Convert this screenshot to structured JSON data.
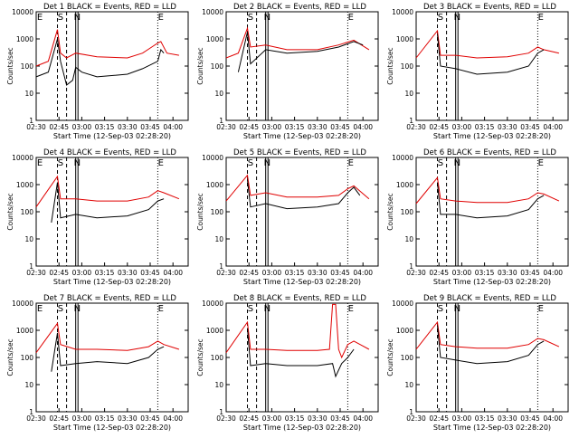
{
  "chart_data": {
    "type": "line",
    "yscale": "log",
    "ylim": [
      1,
      10000
    ],
    "xlim_minutes_after_0200": [
      30,
      130
    ],
    "x_tick_labels": [
      "02:30",
      "02:45",
      "03:00",
      "03:15",
      "03:30",
      "03:45",
      "04:00"
    ],
    "y_tick_labels": [
      "1",
      "10",
      "100",
      "1000",
      "10000"
    ],
    "xlabel": "Start Time (12-Sep-03 02:28:20)",
    "ylabel": "Counts/sec",
    "series_colors": {
      "events": "#000000",
      "lld": "#e00000"
    },
    "marker_labels": [
      "S",
      "N",
      "E"
    ],
    "panels": [
      {
        "title": "Det 1  BLACK = Events, RED = LLD",
        "title_parts": [
          "Det 1",
          "BLACK = Events, RED = LLD"
        ],
        "marks": [
          "E",
          "S",
          "N",
          "E"
        ],
        "black": [
          [
            30,
            40
          ],
          [
            38,
            60
          ],
          [
            44,
            1000
          ],
          [
            46,
            150
          ],
          [
            50,
            20
          ],
          [
            54,
            30
          ],
          [
            56,
            90
          ],
          [
            60,
            60
          ],
          [
            70,
            40
          ],
          [
            90,
            50
          ],
          [
            100,
            80
          ],
          [
            110,
            150
          ],
          [
            112,
            400
          ],
          [
            114,
            300
          ]
        ],
        "red": [
          [
            30,
            100
          ],
          [
            38,
            150
          ],
          [
            44,
            2200
          ],
          [
            46,
            300
          ],
          [
            50,
            200
          ],
          [
            56,
            300
          ],
          [
            70,
            220
          ],
          [
            90,
            200
          ],
          [
            100,
            300
          ],
          [
            106,
            500
          ],
          [
            110,
            700
          ],
          [
            112,
            800
          ],
          [
            116,
            300
          ],
          [
            124,
            250
          ]
        ]
      },
      {
        "title": "Det 2  BLACK = Events, RED = LLD",
        "title_parts": [
          "Det 2",
          "BLACK = Events, RED = LLD"
        ],
        "marks": [
          "S",
          "N",
          "E"
        ],
        "black": [
          [
            38,
            60
          ],
          [
            44,
            1800
          ],
          [
            46,
            120
          ],
          [
            56,
            400
          ],
          [
            70,
            300
          ],
          [
            90,
            350
          ],
          [
            104,
            500
          ],
          [
            114,
            800
          ],
          [
            120,
            600
          ]
        ],
        "red": [
          [
            30,
            200
          ],
          [
            38,
            300
          ],
          [
            44,
            2500
          ],
          [
            46,
            500
          ],
          [
            56,
            600
          ],
          [
            70,
            400
          ],
          [
            90,
            400
          ],
          [
            104,
            600
          ],
          [
            114,
            900
          ],
          [
            124,
            400
          ]
        ]
      },
      {
        "title": "Det 3  BLACK = Events, RED = LLD",
        "title_parts": [
          "Det 3",
          "BLACK = Events, RED = LLD"
        ],
        "marks": [
          "S",
          "N",
          "E"
        ],
        "black": [
          [
            44,
            1500
          ],
          [
            46,
            100
          ],
          [
            56,
            80
          ],
          [
            70,
            50
          ],
          [
            90,
            60
          ],
          [
            104,
            100
          ],
          [
            110,
            300
          ],
          [
            114,
            400
          ]
        ],
        "red": [
          [
            30,
            200
          ],
          [
            44,
            2000
          ],
          [
            46,
            250
          ],
          [
            56,
            250
          ],
          [
            70,
            200
          ],
          [
            90,
            220
          ],
          [
            104,
            300
          ],
          [
            110,
            500
          ],
          [
            114,
            400
          ],
          [
            124,
            300
          ]
        ]
      },
      {
        "title": "Det 4  BLACK = Events, RED = LLD",
        "title_parts": [
          "Det 4",
          "BLACK = Events, RED = LLD"
        ],
        "marks": [
          "E",
          "S",
          "N",
          "E"
        ],
        "black": [
          [
            40,
            40
          ],
          [
            44,
            1200
          ],
          [
            46,
            60
          ],
          [
            56,
            80
          ],
          [
            70,
            60
          ],
          [
            90,
            70
          ],
          [
            104,
            120
          ],
          [
            110,
            250
          ],
          [
            114,
            300
          ]
        ],
        "red": [
          [
            30,
            150
          ],
          [
            44,
            2000
          ],
          [
            46,
            300
          ],
          [
            56,
            300
          ],
          [
            70,
            250
          ],
          [
            90,
            250
          ],
          [
            104,
            350
          ],
          [
            110,
            600
          ],
          [
            114,
            500
          ],
          [
            124,
            300
          ]
        ]
      },
      {
        "title": "Det 5  BLACK = Events, RED = LLD",
        "title_parts": [
          "Det 5",
          "BLACK = Events, RED = LLD"
        ],
        "marks": [
          "S",
          "N",
          "E"
        ],
        "black": [
          [
            44,
            1500
          ],
          [
            46,
            150
          ],
          [
            56,
            200
          ],
          [
            70,
            130
          ],
          [
            90,
            150
          ],
          [
            104,
            200
          ],
          [
            110,
            500
          ],
          [
            114,
            800
          ],
          [
            118,
            400
          ]
        ],
        "red": [
          [
            30,
            250
          ],
          [
            44,
            2200
          ],
          [
            46,
            400
          ],
          [
            56,
            500
          ],
          [
            70,
            350
          ],
          [
            90,
            350
          ],
          [
            104,
            400
          ],
          [
            110,
            700
          ],
          [
            114,
            900
          ],
          [
            124,
            300
          ]
        ]
      },
      {
        "title": "Det 6  BLACK = Events, RED = LLD",
        "title_parts": [
          "Det 6",
          "BLACK = Events, RED = LLD"
        ],
        "marks": [
          "S",
          "N",
          "E"
        ],
        "black": [
          [
            44,
            1200
          ],
          [
            46,
            80
          ],
          [
            56,
            80
          ],
          [
            70,
            60
          ],
          [
            90,
            70
          ],
          [
            104,
            120
          ],
          [
            110,
            300
          ],
          [
            114,
            400
          ]
        ],
        "red": [
          [
            30,
            200
          ],
          [
            44,
            1800
          ],
          [
            46,
            300
          ],
          [
            56,
            250
          ],
          [
            70,
            220
          ],
          [
            90,
            220
          ],
          [
            104,
            300
          ],
          [
            110,
            500
          ],
          [
            114,
            450
          ],
          [
            124,
            250
          ]
        ]
      },
      {
        "title": "Det 7  BLACK = Events, RED = LLD",
        "title_parts": [
          "Det 7",
          "BLACK = Events, RED = LLD"
        ],
        "marks": [
          "E",
          "S",
          "N",
          "E"
        ],
        "black": [
          [
            40,
            30
          ],
          [
            44,
            800
          ],
          [
            46,
            50
          ],
          [
            56,
            60
          ],
          [
            70,
            70
          ],
          [
            90,
            60
          ],
          [
            104,
            100
          ],
          [
            110,
            200
          ],
          [
            114,
            250
          ]
        ],
        "red": [
          [
            30,
            150
          ],
          [
            44,
            1800
          ],
          [
            46,
            300
          ],
          [
            56,
            200
          ],
          [
            70,
            200
          ],
          [
            90,
            180
          ],
          [
            104,
            250
          ],
          [
            110,
            400
          ],
          [
            114,
            300
          ],
          [
            124,
            200
          ]
        ]
      },
      {
        "title": "Det 8  BLACK = Events, RED = LLD",
        "title_parts": [
          "Det 8",
          "BLACK = Events, RED = LLD"
        ],
        "marks": [
          "S",
          "N",
          "E"
        ],
        "black": [
          [
            44,
            1200
          ],
          [
            46,
            50
          ],
          [
            56,
            60
          ],
          [
            70,
            50
          ],
          [
            90,
            50
          ],
          [
            100,
            60
          ],
          [
            102,
            20
          ],
          [
            106,
            60
          ],
          [
            110,
            100
          ],
          [
            114,
            200
          ]
        ],
        "red": [
          [
            30,
            150
          ],
          [
            44,
            2000
          ],
          [
            46,
            200
          ],
          [
            56,
            200
          ],
          [
            70,
            180
          ],
          [
            90,
            180
          ],
          [
            98,
            200
          ],
          [
            100,
            9000
          ],
          [
            102,
            9000
          ],
          [
            104,
            200
          ],
          [
            106,
            100
          ],
          [
            110,
            300
          ],
          [
            114,
            400
          ],
          [
            124,
            200
          ]
        ]
      },
      {
        "title": "Det 9  BLACK = Events, RED = LLD",
        "title_parts": [
          "Det 9",
          "BLACK = Events, RED = LLD"
        ],
        "marks": [
          "S",
          "N",
          "E"
        ],
        "black": [
          [
            44,
            1500
          ],
          [
            46,
            100
          ],
          [
            56,
            80
          ],
          [
            70,
            60
          ],
          [
            90,
            70
          ],
          [
            104,
            120
          ],
          [
            110,
            300
          ],
          [
            114,
            400
          ]
        ],
        "red": [
          [
            30,
            200
          ],
          [
            44,
            2000
          ],
          [
            46,
            300
          ],
          [
            56,
            250
          ],
          [
            70,
            220
          ],
          [
            90,
            220
          ],
          [
            104,
            300
          ],
          [
            110,
            500
          ],
          [
            114,
            450
          ],
          [
            124,
            250
          ]
        ]
      }
    ]
  }
}
